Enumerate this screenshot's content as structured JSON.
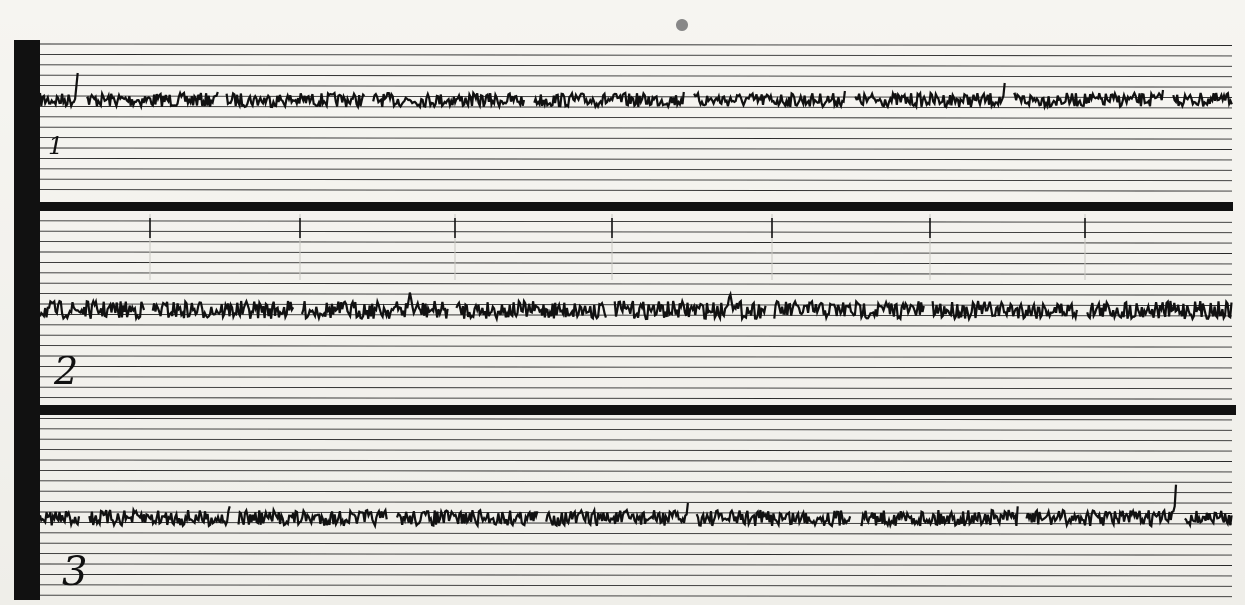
{
  "panels": [
    {
      "label": "1"
    },
    {
      "label": "2"
    },
    {
      "label": "3"
    }
  ],
  "colors": {
    "paper": "#f3f2ee",
    "ink": "#111111",
    "rule": "#2a2a2a",
    "faint": "#c9c8c2"
  }
}
